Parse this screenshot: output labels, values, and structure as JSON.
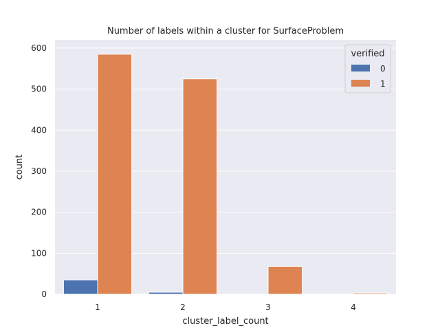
{
  "chart_data": {
    "type": "bar",
    "title": "Number of labels within a cluster for SurfaceProblem",
    "xlabel": "cluster_label_count",
    "ylabel": "count",
    "categories": [
      "1",
      "2",
      "3",
      "4"
    ],
    "series": [
      {
        "name": "0",
        "values": [
          35,
          5,
          0,
          0
        ]
      },
      {
        "name": "1",
        "values": [
          585,
          525,
          68,
          3
        ]
      }
    ],
    "ylim": [
      0,
      620
    ],
    "yticks": [
      0,
      100,
      200,
      300,
      400,
      500,
      600
    ],
    "grid": true,
    "legend": {
      "title": "verified",
      "placement": "top-right"
    }
  },
  "colors": {
    "plot_bg": "#eaeaf2",
    "grid": "#ffffff",
    "series": [
      "#4c72b0",
      "#dd8452"
    ]
  }
}
